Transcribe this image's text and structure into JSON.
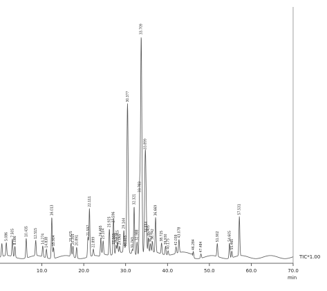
{
  "chart_data": {
    "type": "line",
    "xlabel": "min",
    "trace_label": "TIC*1.00",
    "xlim": [
      0,
      70.0
    ],
    "ylim": [
      0,
      100
    ],
    "x_ticks": [
      "10.0",
      "20.0",
      "30.0",
      "40.0",
      "50.0",
      "60.0",
      "70.0"
    ],
    "grid": false,
    "line_color": "#555555",
    "background_color": "#ffffff",
    "peaks": [
      {
        "rt": 0.44,
        "label": "",
        "height": 6
      },
      {
        "rt": 1.51,
        "label": "5.086",
        "height": 6
      },
      {
        "rt": 2.95,
        "label": "7.505",
        "height": 8
      },
      {
        "rt": 3.56,
        "label": "8.086",
        "height": 5
      },
      {
        "rt": 6.26,
        "label": "10.435",
        "height": 9
      },
      {
        "rt": 8.53,
        "label": "12.515",
        "height": 7
      },
      {
        "rt": 10.21,
        "label": "14.274",
        "height": 5
      },
      {
        "rt": 11.09,
        "label": "14.838",
        "height": 4
      },
      {
        "rt": 12.37,
        "label": "16.013",
        "height": 19
      },
      {
        "rt": 12.79,
        "label": "15.904",
        "height": 5
      },
      {
        "rt": 16.96,
        "label": "19.425",
        "height": 6
      },
      {
        "rt": 17.43,
        "label": "20.355",
        "height": 5
      },
      {
        "rt": 18.3,
        "label": "20.891",
        "height": 5
      },
      {
        "rt": 21.01,
        "label": "21.597",
        "height": 9
      },
      {
        "rt": 21.36,
        "label": "22.111",
        "height": 22
      },
      {
        "rt": 22.29,
        "label": "22.899",
        "height": 3
      },
      {
        "rt": 24.06,
        "label": "24.465",
        "height": 7
      },
      {
        "rt": 24.63,
        "label": "25.104",
        "height": 6
      },
      {
        "rt": 26.12,
        "label": "25.925",
        "height": 12
      },
      {
        "rt": 27.08,
        "label": "27.596",
        "height": 14
      },
      {
        "rt": 27.18,
        "label": "27.103",
        "height": 4
      },
      {
        "rt": 27.71,
        "label": "28.018",
        "height": 4
      },
      {
        "rt": 28.07,
        "label": "28.315",
        "height": 5
      },
      {
        "rt": 28.56,
        "label": "29.065",
        "height": 3
      },
      {
        "rt": 29.58,
        "label": "29.144",
        "height": 10
      },
      {
        "rt": 29.93,
        "label": "30.005",
        "height": 2
      },
      {
        "rt": 30.45,
        "label": "30.377",
        "height": 68
      },
      {
        "rt": 31.6,
        "label": "31.743",
        "height": 2
      },
      {
        "rt": 32.03,
        "label": "32.321",
        "height": 22
      },
      {
        "rt": 32.73,
        "label": "32.988",
        "height": 6
      },
      {
        "rt": 33.34,
        "label": "33.783",
        "height": 28
      },
      {
        "rt": 33.72,
        "label": "33.709",
        "height": 100
      },
      {
        "rt": 34.7,
        "label": "33.899",
        "height": 47
      },
      {
        "rt": 34.94,
        "label": "34.654",
        "height": 9
      },
      {
        "rt": 35.41,
        "label": "35.405",
        "height": 7
      },
      {
        "rt": 35.92,
        "label": "36.037",
        "height": 4
      },
      {
        "rt": 36.39,
        "label": "36.742",
        "height": 5
      },
      {
        "rt": 37.16,
        "label": "36.669",
        "height": 16
      },
      {
        "rt": 38.58,
        "label": "38.725",
        "height": 5
      },
      {
        "rt": 39.53,
        "label": "39.930",
        "height": 4
      },
      {
        "rt": 40.14,
        "label": "40.175",
        "height": 2
      },
      {
        "rt": 42.04,
        "label": "42.039",
        "height": 3
      },
      {
        "rt": 42.74,
        "label": "43.078",
        "height": 6
      },
      {
        "rt": 46.16,
        "label": "46.284",
        "height": 3
      },
      {
        "rt": 47.98,
        "label": "47.484",
        "height": 2
      },
      {
        "rt": 51.89,
        "label": "51.902",
        "height": 6
      },
      {
        "rt": 54.81,
        "label": "54.605",
        "height": 7
      },
      {
        "rt": 55.36,
        "label": "55.460",
        "height": 3
      },
      {
        "rt": 57.16,
        "label": "57.531",
        "height": 18
      }
    ]
  }
}
